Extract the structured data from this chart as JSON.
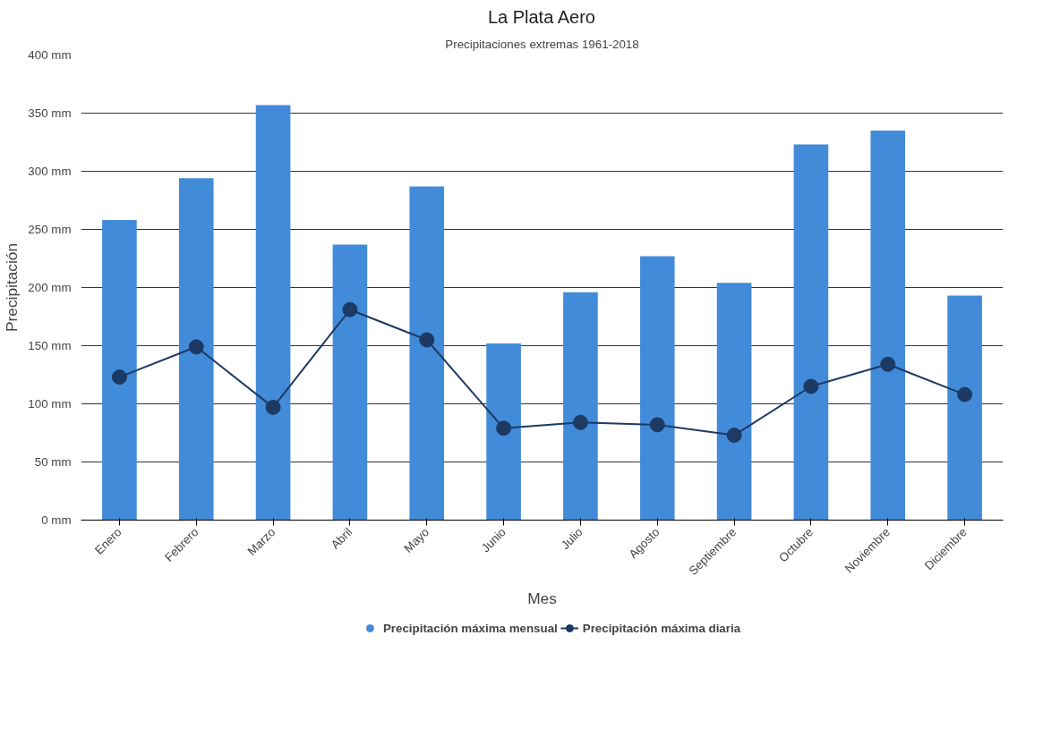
{
  "chart_data": {
    "type": "bar",
    "title": "La Plata Aero",
    "subtitle": "Precipitaciones extremas 1961-2018",
    "xlabel": "Mes",
    "ylabel": "Precipitación",
    "categories": [
      "Enero",
      "Febrero",
      "Marzo",
      "Abril",
      "Mayo",
      "Junio",
      "Julio",
      "Agosto",
      "Septiembre",
      "Octubre",
      "Noviembre",
      "Diciembre"
    ],
    "series": [
      {
        "name": "Precipitación máxima mensual",
        "color": "#428bd9",
        "values": [
          258,
          294,
          357,
          237,
          287,
          152,
          196,
          227,
          204,
          323,
          335,
          193
        ]
      },
      {
        "name": "Precipitación máxima diaria",
        "type": "line",
        "color": "#1c3a64",
        "values": [
          123,
          149,
          97,
          181,
          155,
          79,
          84,
          82,
          73,
          115,
          134,
          108
        ]
      }
    ],
    "ylim": [
      0,
      400
    ],
    "yticks": [
      {
        "value": 0,
        "label": "0 mm"
      },
      {
        "value": 50,
        "label": "50 mm"
      },
      {
        "value": 100,
        "label": "100 mm"
      },
      {
        "value": 150,
        "label": "150 mm"
      },
      {
        "value": 200,
        "label": "200 mm"
      },
      {
        "value": 250,
        "label": "250 mm"
      },
      {
        "value": 300,
        "label": "300 mm"
      },
      {
        "value": 350,
        "label": "350 mm"
      },
      {
        "value": 400,
        "label": "400 mm"
      }
    ],
    "grid": "y",
    "legend": "bottom",
    "marker": "circle",
    "line_style": "solid"
  }
}
